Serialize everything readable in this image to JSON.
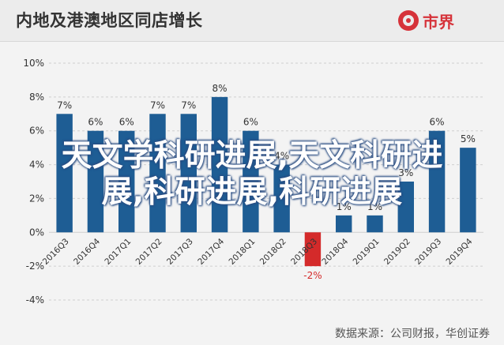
{
  "header": {
    "title": "内地及港澳地区同店增长",
    "logo_text": "市界"
  },
  "watermark": {
    "line1": "天文学科研进展,天文科研进",
    "line2": "展,科研进展,科研进展"
  },
  "source": "数据来源：公司财报，华创证券",
  "colors": {
    "bar": "#1e5d94",
    "bar_negative": "#d42a2a",
    "gridline": "#cfcfcf",
    "axis_text": "#333333"
  },
  "chart_data": {
    "type": "bar",
    "title": "内地及港澳地区同店增长",
    "categories": [
      "2016Q3",
      "2016Q4",
      "2017Q1",
      "2017Q2",
      "2017Q3",
      "2017Q4",
      "2018Q1",
      "2018Q2",
      "2018Q3",
      "2018Q4",
      "2019Q1",
      "2019Q2",
      "2019Q3",
      "2019Q4"
    ],
    "values": [
      7,
      6,
      6,
      7,
      7,
      8,
      6,
      4,
      -2,
      1,
      1,
      3,
      6,
      5
    ],
    "value_labels": [
      "7%",
      "6%",
      "6%",
      "7%",
      "7%",
      "8%",
      "6%",
      "4%",
      "-2%",
      "1%",
      "1%",
      "3%",
      "6%",
      "5%"
    ],
    "ylim": [
      -4,
      10
    ],
    "yticks": [
      -4,
      -2,
      0,
      2,
      4,
      6,
      8,
      10
    ],
    "ytick_labels": [
      "-4%",
      "-2%",
      "0%",
      "2%",
      "4%",
      "6%",
      "8%",
      "10%"
    ],
    "grid": true,
    "xlabel": "",
    "ylabel": ""
  }
}
